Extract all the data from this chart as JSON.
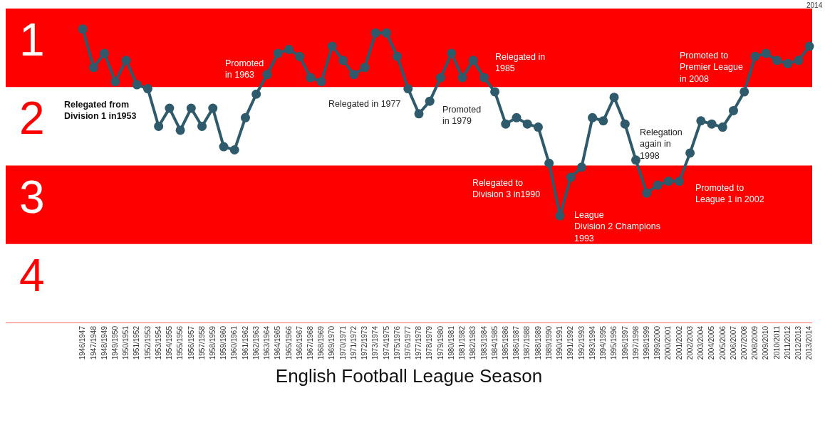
{
  "chart_data": {
    "type": "line",
    "xlabel": "English Football League Season",
    "categories": [
      "1946/1947",
      "1947/1948",
      "1948/1949",
      "1949/1950",
      "1950/1951",
      "1951/1952",
      "1952/1953",
      "1953/1954",
      "1954/1955",
      "1955/1956",
      "1956/1957",
      "1957/1958",
      "1958/1959",
      "1959/1960",
      "1960/1961",
      "1961/1962",
      "1962/1963",
      "1963/1964",
      "1964/1965",
      "1965/1966",
      "1966/1967",
      "1967/1968",
      "1968/1969",
      "1969/1970",
      "1970/1971",
      "1971/1972",
      "1972/1973",
      "1973/1974",
      "1974/1975",
      "1975/1976",
      "1976/1977",
      "1977/1978",
      "1978/1979",
      "1979/1980",
      "1980/1981",
      "1981/1982",
      "1982/1983",
      "1983/1984",
      "1984/1985",
      "1985/1986",
      "1986/1987",
      "1987/1988",
      "1988/1989",
      "1989/1990",
      "1990/1991",
      "1991/1992",
      "1992/1993",
      "1993/1994",
      "1994/1995",
      "1995/1996",
      "1996/1997",
      "1997/1998",
      "1998/1999",
      "1999/2000",
      "2000/2001",
      "2001/2002",
      "2002/2003",
      "2003/2004",
      "2004/2005",
      "2005/2006",
      "2006/2007",
      "2007/2008",
      "2008/2009",
      "2009/2010",
      "2010/2011",
      "2011/2012",
      "2012/2013",
      "2013/2014"
    ],
    "series": [
      {
        "color": "#2e5a6b",
        "values": [
          0.76,
          1.25,
          1.07,
          1.43,
          1.16,
          1.47,
          1.52,
          2.0,
          1.77,
          2.05,
          1.77,
          2.0,
          1.77,
          2.26,
          2.3,
          1.89,
          1.59,
          1.34,
          1.07,
          1.02,
          1.11,
          1.38,
          1.43,
          0.98,
          1.16,
          1.34,
          1.25,
          0.81,
          0.81,
          1.11,
          1.52,
          1.84,
          1.68,
          1.38,
          1.07,
          1.38,
          1.16,
          1.38,
          1.56,
          1.97,
          1.89,
          1.97,
          2.01,
          2.47,
          3.14,
          2.65,
          2.52,
          1.89,
          1.93,
          1.63,
          1.97,
          2.43,
          2.85,
          2.75,
          2.7,
          2.7,
          2.34,
          1.93,
          1.97,
          2.01,
          1.8,
          1.56,
          1.11,
          1.07,
          1.16,
          1.2,
          1.16,
          0.98
        ]
      }
    ],
    "marker": "circle",
    "line_style": "solid",
    "ylim": [
      4.5,
      0.39
    ],
    "yticks": [
      {
        "value": 1,
        "label": "1"
      },
      {
        "value": 2,
        "label": "2"
      },
      {
        "value": 3,
        "label": "3"
      },
      {
        "value": 4,
        "label": "4"
      }
    ],
    "bands": [
      {
        "axis": "y",
        "from": 0.5,
        "to": 1.5,
        "label": null,
        "color": "#ff0000"
      },
      {
        "axis": "y",
        "from": 2.5,
        "to": 3.5,
        "label": null,
        "color": "#ff0000"
      }
    ],
    "grid": false,
    "legend": false,
    "annotations": [
      "Relegated from\nDivision 1 in1953",
      "Promoted\nin 1963",
      "Relegated in 1977",
      "Promoted\nin 1979",
      "Relegated in\n1985",
      "Relegated to\nDivision 3 in1990",
      "League\nDivision 2 Champions\n1993",
      "Relegation\nagain in\n1998",
      "Promoted to\nLeague 1 in 2002",
      "Promoted to\nPremier League\nin 2008",
      "2014"
    ]
  }
}
